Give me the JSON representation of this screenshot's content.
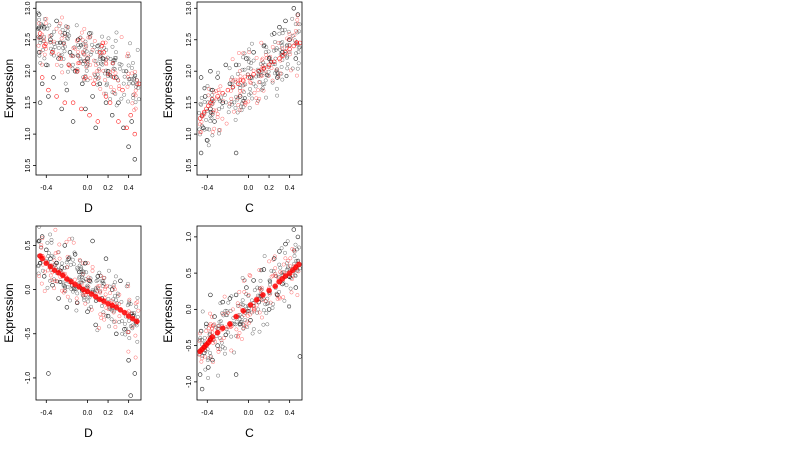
{
  "chart_data": [
    {
      "type": "scatter",
      "title": "",
      "xlabel": "D",
      "ylabel": "Expression",
      "xlim": [
        -0.5,
        0.52
      ],
      "ylim": [
        10.35,
        13.1
      ],
      "x_ticks": [
        {
          "value": -0.4,
          "label": "-0.4"
        },
        {
          "value": 0.0,
          "label": "0.0"
        },
        {
          "value": 0.2,
          "label": "0.2"
        },
        {
          "value": 0.4,
          "label": "0.4"
        }
      ],
      "y_ticks": [
        {
          "value": 10.5,
          "label": "10.5"
        },
        {
          "value": 11.0,
          "label": "11.0"
        },
        {
          "value": 11.5,
          "label": "11.5"
        },
        {
          "value": 12.0,
          "label": "12.0"
        },
        {
          "value": 12.5,
          "label": "12.5"
        },
        {
          "value": 13.0,
          "label": "13.0"
        }
      ],
      "series": [
        {
          "color": "#000000",
          "marker": "open-circle",
          "x": [
            -0.47,
            -0.47,
            -0.46,
            -0.44,
            -0.42,
            -0.4,
            -0.38,
            -0.36,
            -0.33,
            -0.3,
            -0.28,
            -0.25,
            -0.22,
            -0.2,
            -0.17,
            -0.14,
            -0.12,
            -0.09,
            -0.05,
            -0.02,
            0.0,
            0.02,
            0.05,
            0.08,
            0.1,
            0.12,
            0.15,
            0.18,
            0.2,
            0.24,
            0.28,
            0.3,
            0.35,
            0.4,
            0.43,
            0.46
          ],
          "y": [
            12.9,
            12.3,
            11.5,
            11.8,
            12.7,
            12.1,
            11.6,
            12.5,
            11.9,
            12.8,
            12.2,
            11.4,
            12.6,
            11.7,
            12.3,
            11.2,
            12.0,
            12.5,
            11.8,
            11.4,
            12.2,
            12.6,
            11.6,
            11.1,
            12.4,
            11.8,
            12.2,
            11.5,
            12.0,
            11.3,
            11.9,
            11.5,
            11.1,
            10.8,
            11.2,
            10.6
          ]
        },
        {
          "color": "#ff0000",
          "marker": "open-circle",
          "x": [
            -0.46,
            -0.44,
            -0.42,
            -0.38,
            -0.34,
            -0.3,
            -0.26,
            -0.22,
            -0.18,
            -0.14,
            -0.1,
            -0.06,
            -0.02,
            0.02,
            0.06,
            0.1,
            0.12,
            0.14,
            0.15,
            0.16,
            0.18,
            0.22,
            0.26,
            0.3,
            0.34,
            0.38,
            0.42,
            0.46,
            0.5
          ],
          "y": [
            12.6,
            11.9,
            12.4,
            11.7,
            12.3,
            11.6,
            12.2,
            11.5,
            12.1,
            11.5,
            12.0,
            11.4,
            11.9,
            11.3,
            11.8,
            11.2,
            12.3,
            12.4,
            12.45,
            12.3,
            11.6,
            11.5,
            11.9,
            11.2,
            11.7,
            11.1,
            11.3,
            11.0,
            11.8
          ]
        }
      ]
    },
    {
      "type": "scatter",
      "title": "",
      "xlabel": "C",
      "ylabel": "Expression",
      "xlim": [
        -0.5,
        0.52
      ],
      "ylim": [
        10.35,
        13.1
      ],
      "x_ticks": [
        {
          "value": -0.4,
          "label": "-0.4"
        },
        {
          "value": 0.0,
          "label": "0.0"
        },
        {
          "value": 0.2,
          "label": "0.2"
        },
        {
          "value": 0.4,
          "label": "0.4"
        }
      ],
      "y_ticks": [
        {
          "value": 10.5,
          "label": "10.5"
        },
        {
          "value": 11.0,
          "label": "11.0"
        },
        {
          "value": 11.5,
          "label": "11.5"
        },
        {
          "value": 12.0,
          "label": "12.0"
        },
        {
          "value": 12.5,
          "label": "12.5"
        },
        {
          "value": 13.0,
          "label": "13.0"
        }
      ],
      "series": [
        {
          "color": "#000000",
          "marker": "open-circle",
          "x": [
            -0.46,
            -0.46,
            -0.44,
            -0.42,
            -0.4,
            -0.37,
            -0.37,
            -0.35,
            -0.33,
            -0.3,
            -0.25,
            -0.22,
            -0.18,
            -0.12,
            -0.12,
            -0.08,
            -0.02,
            0.02,
            0.05,
            0.1,
            0.15,
            0.2,
            0.25,
            0.28,
            0.3,
            0.33,
            0.36,
            0.4,
            0.44,
            0.46,
            0.48,
            0.5
          ],
          "y": [
            10.7,
            11.9,
            11.1,
            11.6,
            10.9,
            11.4,
            12.0,
            11.7,
            11.2,
            11.9,
            11.5,
            12.1,
            11.8,
            10.7,
            12.1,
            11.6,
            12.2,
            11.9,
            12.3,
            12.0,
            12.4,
            12.2,
            12.6,
            11.9,
            12.7,
            12.3,
            12.8,
            12.5,
            13.0,
            12.2,
            12.9,
            11.5
          ]
        },
        {
          "color": "#ff0000",
          "marker": "open-circle",
          "x": [
            -0.47,
            -0.45,
            -0.43,
            -0.41,
            -0.39,
            -0.37,
            -0.35,
            -0.3,
            -0.25,
            -0.2,
            -0.15,
            -0.1,
            -0.05,
            0.0,
            0.05,
            0.1,
            0.15,
            0.2,
            0.25,
            0.3,
            0.33,
            0.36,
            0.4,
            0.44,
            0.47,
            0.5
          ],
          "y": [
            11.25,
            11.3,
            11.35,
            11.4,
            11.45,
            11.5,
            11.55,
            11.6,
            11.65,
            11.7,
            11.75,
            11.8,
            11.85,
            11.9,
            11.95,
            12.0,
            12.05,
            12.1,
            12.15,
            12.2,
            12.25,
            12.3,
            12.35,
            12.4,
            12.45,
            12.45
          ]
        }
      ]
    },
    {
      "type": "scatter",
      "title": "",
      "xlabel": "D",
      "ylabel": "Expression",
      "xlim": [
        -0.5,
        0.52
      ],
      "ylim": [
        -1.25,
        0.72
      ],
      "x_ticks": [
        {
          "value": -0.4,
          "label": "-0.4"
        },
        {
          "value": 0.0,
          "label": "0.0"
        },
        {
          "value": 0.2,
          "label": "0.2"
        },
        {
          "value": 0.4,
          "label": "0.4"
        }
      ],
      "y_ticks": [
        {
          "value": -1.0,
          "label": "-1.0"
        },
        {
          "value": -0.5,
          "label": "-0.5"
        },
        {
          "value": 0.0,
          "label": "0.0"
        },
        {
          "value": 0.5,
          "label": "0.5"
        }
      ],
      "series": [
        {
          "color": "#000000",
          "marker": "open-circle",
          "x": [
            -0.47,
            -0.46,
            -0.44,
            -0.42,
            -0.4,
            -0.38,
            -0.36,
            -0.34,
            -0.3,
            -0.28,
            -0.25,
            -0.22,
            -0.2,
            -0.18,
            -0.15,
            -0.12,
            -0.1,
            -0.08,
            -0.05,
            -0.02,
            0.0,
            0.02,
            0.05,
            0.08,
            0.1,
            0.14,
            0.18,
            0.2,
            0.24,
            0.28,
            0.32,
            0.36,
            0.4,
            0.42,
            0.44,
            0.46
          ],
          "y": [
            0.55,
            0.3,
            0.6,
            0.15,
            0.45,
            -0.95,
            0.35,
            0.05,
            0.3,
            -0.1,
            0.25,
            0.5,
            -0.2,
            0.35,
            0.05,
            0.4,
            -0.15,
            0.2,
            0.0,
            0.3,
            -0.25,
            0.1,
            0.55,
            -0.4,
            0.15,
            -0.1,
            0.35,
            -0.3,
            0.0,
            -0.5,
            0.1,
            -0.45,
            -0.8,
            -1.2,
            -0.3,
            -0.95
          ]
        },
        {
          "color": "#ff0000",
          "marker": "filled-circle",
          "x": [
            -0.46,
            -0.44,
            -0.4,
            -0.36,
            -0.32,
            -0.28,
            -0.24,
            -0.2,
            -0.16,
            -0.12,
            -0.08,
            -0.04,
            0.0,
            0.04,
            0.08,
            0.12,
            0.16,
            0.2,
            0.24,
            0.28,
            0.32,
            0.36,
            0.4,
            0.44,
            0.48
          ],
          "y": [
            0.38,
            0.35,
            0.3,
            0.26,
            0.22,
            0.19,
            0.16,
            0.12,
            0.09,
            0.06,
            0.03,
            0.0,
            -0.02,
            -0.05,
            -0.08,
            -0.11,
            -0.13,
            -0.16,
            -0.18,
            -0.2,
            -0.23,
            -0.26,
            -0.3,
            -0.33,
            -0.36
          ]
        }
      ]
    },
    {
      "type": "scatter",
      "title": "",
      "xlabel": "C",
      "ylabel": "Expression",
      "xlim": [
        -0.5,
        0.52
      ],
      "ylim": [
        -1.25,
        1.15
      ],
      "x_ticks": [
        {
          "value": -0.4,
          "label": "-0.4"
        },
        {
          "value": 0.0,
          "label": "0.0"
        },
        {
          "value": 0.2,
          "label": "0.2"
        },
        {
          "value": 0.4,
          "label": "0.4"
        }
      ],
      "y_ticks": [
        {
          "value": -1.0,
          "label": "-1.0"
        },
        {
          "value": -0.5,
          "label": "-0.5"
        },
        {
          "value": 0.0,
          "label": "0.0"
        },
        {
          "value": 0.5,
          "label": "0.5"
        },
        {
          "value": 1.0,
          "label": "1.0"
        }
      ],
      "series": [
        {
          "color": "#000000",
          "marker": "open-circle",
          "x": [
            -0.47,
            -0.46,
            -0.45,
            -0.43,
            -0.41,
            -0.39,
            -0.37,
            -0.37,
            -0.35,
            -0.33,
            -0.3,
            -0.25,
            -0.22,
            -0.18,
            -0.12,
            -0.12,
            -0.08,
            -0.02,
            0.02,
            0.05,
            0.1,
            0.15,
            0.2,
            0.25,
            0.28,
            0.3,
            0.33,
            0.36,
            0.4,
            0.44,
            0.46,
            0.48,
            0.5
          ],
          "y": [
            -0.9,
            -0.3,
            -1.1,
            -0.6,
            -0.2,
            -0.8,
            -0.4,
            0.2,
            -0.7,
            -0.1,
            -0.5,
            0.1,
            -0.35,
            0.15,
            -0.9,
            0.2,
            -0.2,
            0.3,
            -0.15,
            0.4,
            0.1,
            0.55,
            0.0,
            0.7,
            0.2,
            0.8,
            0.35,
            0.9,
            0.45,
            1.1,
            0.3,
            1.0,
            -0.65
          ]
        },
        {
          "color": "#ff0000",
          "marker": "filled-circle",
          "x": [
            -0.47,
            -0.45,
            -0.43,
            -0.41,
            -0.39,
            -0.37,
            -0.35,
            -0.3,
            -0.25,
            -0.18,
            -0.12,
            -0.05,
            0.02,
            0.08,
            0.14,
            0.2,
            0.26,
            0.3,
            0.33,
            0.36,
            0.4,
            0.43,
            0.46,
            0.49
          ],
          "y": [
            -0.58,
            -0.55,
            -0.52,
            -0.49,
            -0.46,
            -0.42,
            -0.38,
            -0.32,
            -0.26,
            -0.2,
            -0.1,
            -0.02,
            0.06,
            0.13,
            0.2,
            0.26,
            0.32,
            0.38,
            0.42,
            0.46,
            0.5,
            0.54,
            0.58,
            0.62
          ]
        }
      ]
    }
  ]
}
